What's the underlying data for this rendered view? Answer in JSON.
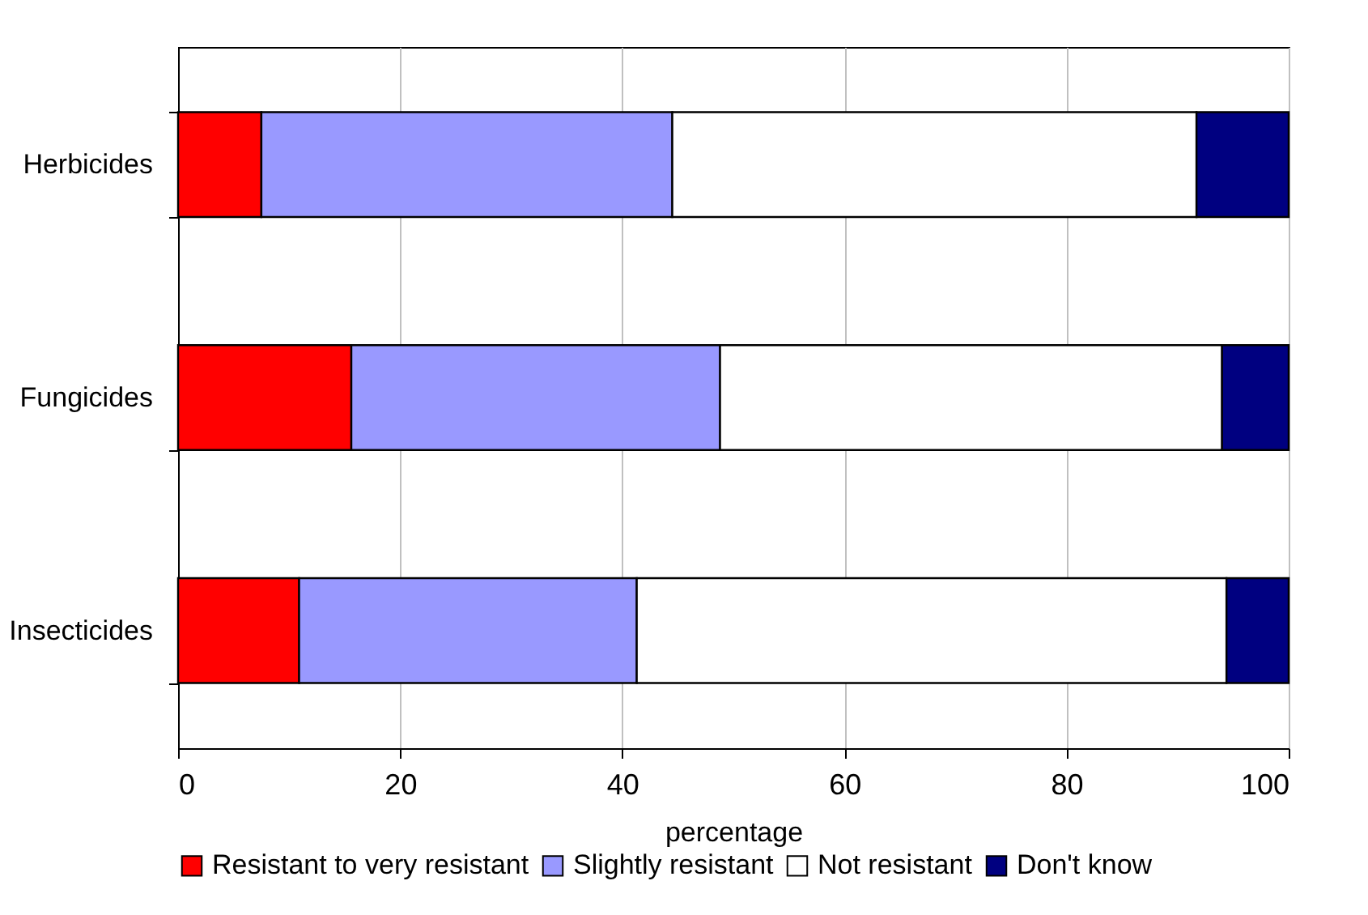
{
  "chart_data": {
    "type": "bar",
    "orientation": "horizontal",
    "stacked": true,
    "xlabel": "percentage",
    "categories": [
      "Herbicides",
      "Fungicides",
      "Insecticides"
    ],
    "series": [
      {
        "name": "Resistant to very resistant",
        "color": "#ff0000",
        "values": [
          7.5,
          15.6,
          10.9
        ]
      },
      {
        "name": "Slightly resistant",
        "color": "#9999ff",
        "values": [
          37.0,
          33.2,
          30.4
        ]
      },
      {
        "name": "Not resistant",
        "color": "#ffffff",
        "values": [
          47.2,
          45.2,
          53.1
        ]
      },
      {
        "name": "Don't know",
        "color": "#000080",
        "values": [
          8.3,
          6.0,
          5.6
        ]
      }
    ],
    "xlim": [
      0,
      100
    ],
    "xticks": [
      0,
      20,
      40,
      60,
      80,
      100
    ],
    "grid": "x",
    "legend": "bottom"
  }
}
